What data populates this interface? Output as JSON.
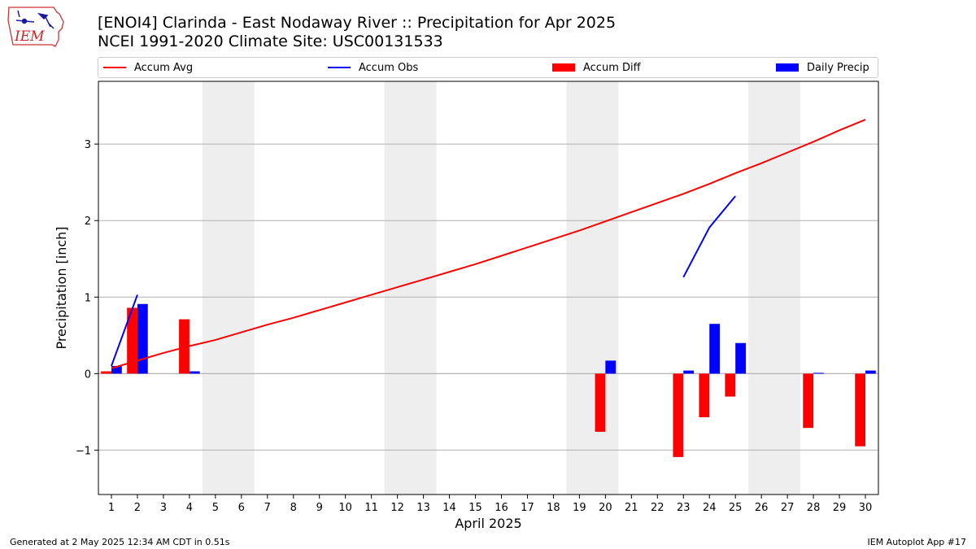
{
  "header": {
    "title_line1": "[ENOI4] Clarinda - East Nodaway River :: Precipitation for Apr 2025",
    "title_line2": "NCEI 1991-2020 Climate Site: USC00131533",
    "logo_text": "IEM"
  },
  "legend": {
    "items": [
      {
        "label": "Accum Avg",
        "color": "#ff0000",
        "kind": "line"
      },
      {
        "label": "Accum Obs",
        "color": "#0000ff",
        "kind": "line"
      },
      {
        "label": "Accum Diff",
        "color": "#ff0000",
        "kind": "bar"
      },
      {
        "label": "Daily Precip",
        "color": "#0000ff",
        "kind": "bar"
      }
    ]
  },
  "footer": {
    "left": "Generated at 2 May 2025 12:34 AM CDT in 0.51s",
    "right": "IEM Autoplot App #17"
  },
  "chart_data": {
    "type": "bar",
    "xlabel": "April 2025",
    "ylabel": "Precipitation [inch]",
    "xlim": [
      0.5,
      30.5
    ],
    "ylim": [
      -1.58,
      3.82
    ],
    "yticks": [
      -1,
      0,
      1,
      2,
      3
    ],
    "ytick_labels": [
      "−1",
      "0",
      "1",
      "2",
      "3"
    ],
    "grid": "horizontal",
    "legend_position": "top",
    "weekend_shading": [
      [
        4.5,
        6.5
      ],
      [
        11.5,
        13.5
      ],
      [
        18.5,
        20.5
      ],
      [
        25.5,
        27.5
      ]
    ],
    "x": [
      1,
      2,
      3,
      4,
      5,
      6,
      7,
      8,
      9,
      10,
      11,
      12,
      13,
      14,
      15,
      16,
      17,
      18,
      19,
      20,
      21,
      22,
      23,
      24,
      25,
      26,
      27,
      28,
      29,
      30
    ],
    "series": [
      {
        "name": "Accum Avg",
        "type": "line",
        "color": "#ff0000",
        "x": [
          1,
          2,
          3,
          4,
          5,
          6,
          7,
          8,
          9,
          10,
          11,
          12,
          13,
          14,
          15,
          16,
          17,
          18,
          19,
          20,
          21,
          22,
          23,
          24,
          25,
          26,
          27,
          28,
          29,
          30
        ],
        "values": [
          0.07,
          0.17,
          0.27,
          0.36,
          0.44,
          0.54,
          0.64,
          0.73,
          0.83,
          0.93,
          1.03,
          1.13,
          1.23,
          1.33,
          1.43,
          1.54,
          1.65,
          1.76,
          1.87,
          1.99,
          2.11,
          2.23,
          2.35,
          2.48,
          2.62,
          2.75,
          2.89,
          3.03,
          3.18,
          3.32
        ]
      },
      {
        "name": "Accum Obs",
        "type": "line",
        "color": "#0000ff",
        "segments": [
          {
            "x": [
              1,
              2
            ],
            "values": [
              0.1,
              1.03
            ]
          },
          {
            "x": [
              23,
              24,
              25
            ],
            "values": [
              1.26,
              1.91,
              2.32
            ]
          }
        ]
      },
      {
        "name": "Accum Diff",
        "type": "bar",
        "color": "#ff0000",
        "x": [
          1,
          2,
          4,
          20,
          23,
          24,
          25,
          28,
          30
        ],
        "values": [
          0.03,
          0.86,
          0.71,
          -0.76,
          -1.09,
          -0.57,
          -0.3,
          -0.71,
          -0.95
        ]
      },
      {
        "name": "Daily Precip",
        "type": "bar",
        "color": "#0000ff",
        "x": [
          1,
          2,
          4,
          20,
          23,
          24,
          25,
          28,
          30
        ],
        "values": [
          0.1,
          0.91,
          0.03,
          0.17,
          0.04,
          0.65,
          0.4,
          0.01,
          0.04
        ]
      }
    ]
  }
}
